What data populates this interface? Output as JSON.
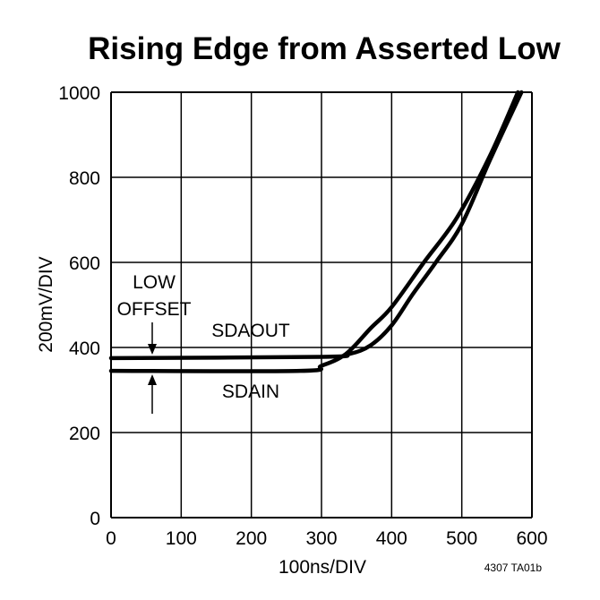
{
  "chart_data": {
    "type": "line",
    "title": "Rising Edge from Asserted Low",
    "xlabel": "100ns/DIV",
    "ylabel": "200mV/DIV",
    "xlim": [
      0,
      600
    ],
    "ylim": [
      0,
      1000
    ],
    "xticks": [
      0,
      100,
      200,
      300,
      400,
      500,
      600
    ],
    "yticks": [
      0,
      200,
      400,
      600,
      800,
      1000
    ],
    "grid": true,
    "series": [
      {
        "name": "SDAOUT",
        "x": [
          0,
          300,
          340,
          370,
          400,
          430,
          463,
          500,
          540,
          585
        ],
        "y": [
          375,
          378,
          385,
          405,
          452,
          525,
          600,
          690,
          840,
          1000
        ]
      },
      {
        "name": "SDAIN",
        "x": [
          0,
          270,
          300,
          335,
          370,
          400,
          446,
          493,
          540,
          580
        ],
        "y": [
          345,
          345,
          357,
          385,
          445,
          495,
          600,
          705,
          850,
          1000
        ]
      }
    ],
    "annotations": [
      "LOW",
      "OFFSET"
    ],
    "footnote": "4307 TA01b",
    "line_color": "#000000"
  }
}
